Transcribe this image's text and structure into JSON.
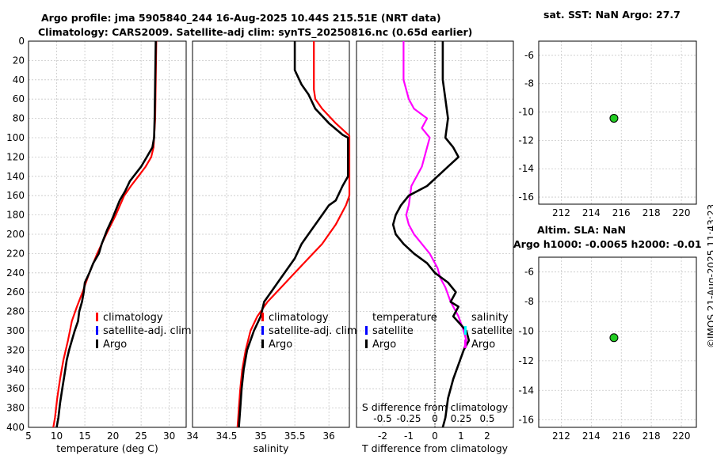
{
  "header": {
    "title_line1": "Argo profile: jma 5905840_244 16-Aug-2025 10.44S 215.51E (NRT data)",
    "title_line2": "Climatology: CARS2009. Satellite-adj clim: synTS_20250816.nc (0.65d earlier)",
    "sst_title": "sat. SST: NaN Argo: 27.7",
    "sla_title1": "Altim. SLA: NaN",
    "sla_title2": "Argo h1000: -0.0065 h2000: -0.01",
    "timestamp": "©IMOS 21-Aug-2025 11:43:23"
  },
  "colors": {
    "climatology": "#ff0000",
    "satellite": "#0000ff",
    "argo": "#000000",
    "diff_T": "#ff00ff",
    "diff_S": "#00ffff",
    "marker": "#22cc22"
  },
  "chart_data": [
    {
      "type": "line",
      "name": "temperature",
      "xlabel": "temperature (deg C)",
      "xlim": [
        5,
        33
      ],
      "xticks": [
        5,
        10,
        15,
        20,
        25,
        30
      ],
      "ylim": [
        400,
        0
      ],
      "yticks": [
        0,
        20,
        40,
        60,
        80,
        100,
        120,
        140,
        160,
        180,
        200,
        220,
        240,
        260,
        280,
        300,
        320,
        340,
        360,
        380,
        400
      ],
      "legend": [
        "climatology",
        "satellite-adj. clim",
        "Argo"
      ],
      "series": [
        {
          "name": "climatology",
          "color": "#ff0000",
          "x": [
            27.7,
            27.6,
            27.5,
            27.3,
            27.2,
            26.8,
            25.8,
            24.5,
            23.2,
            22.0,
            20.5,
            18.8,
            17.2,
            15.8,
            14.6,
            13.6,
            12.7,
            12.0,
            11.2,
            10.6,
            10.1,
            9.7,
            9.4
          ],
          "y": [
            0,
            40,
            80,
            100,
            110,
            120,
            130,
            140,
            150,
            160,
            180,
            200,
            220,
            240,
            260,
            275,
            290,
            310,
            330,
            350,
            370,
            390,
            400
          ]
        },
        {
          "name": "Argo",
          "color": "#000000",
          "x": [
            27.6,
            27.5,
            27.4,
            27.3,
            27.0,
            26.0,
            25.0,
            23.0,
            22.2,
            21.2,
            20.5,
            19.8,
            19.0,
            18.0,
            17.5,
            16.5,
            15.8,
            15.0,
            14.8,
            14.5,
            14.0,
            13.8,
            13.2,
            12.7,
            12.2,
            11.8,
            11.4,
            11.0,
            10.6,
            10.3,
            10.0
          ],
          "y": [
            0,
            40,
            80,
            100,
            110,
            120,
            130,
            145,
            155,
            165,
            175,
            185,
            195,
            210,
            220,
            230,
            240,
            250,
            260,
            270,
            280,
            290,
            300,
            310,
            320,
            330,
            345,
            360,
            375,
            390,
            400
          ]
        }
      ]
    },
    {
      "type": "line",
      "name": "salinity",
      "xlabel": "salinity",
      "xlim": [
        34,
        36.3
      ],
      "xticks": [
        34,
        34.5,
        35,
        35.5,
        36
      ],
      "xtick_labels": [
        "34",
        "34.5",
        "35",
        "35.5",
        "36"
      ],
      "ylim": [
        400,
        0
      ],
      "legend": [
        "climatology",
        "satellite-adj. clim",
        "Argo"
      ],
      "series": [
        {
          "name": "climatology",
          "color": "#ff0000",
          "x": [
            35.78,
            35.78,
            35.8,
            35.9,
            36.1,
            36.3,
            36.3,
            36.25,
            36.1,
            35.9,
            35.7,
            35.5,
            35.3,
            35.1,
            34.95,
            34.85,
            34.78,
            34.73,
            34.7,
            34.68,
            34.67,
            34.66
          ],
          "y": [
            0,
            50,
            60,
            70,
            85,
            98,
            160,
            170,
            190,
            210,
            225,
            240,
            255,
            270,
            285,
            300,
            320,
            340,
            360,
            380,
            390,
            400
          ]
        },
        {
          "name": "Argo",
          "color": "#000000",
          "x": [
            35.5,
            35.5,
            35.6,
            35.7,
            35.8,
            36.0,
            36.2,
            36.28,
            36.28,
            36.2,
            36.1,
            36.0,
            35.9,
            35.8,
            35.7,
            35.6,
            35.5,
            35.3,
            35.15,
            35.05,
            35.0,
            34.9,
            34.8,
            34.75,
            34.72,
            34.7,
            34.68
          ],
          "y": [
            0,
            30,
            45,
            55,
            70,
            85,
            97,
            100,
            140,
            150,
            165,
            170,
            180,
            190,
            200,
            210,
            225,
            245,
            260,
            270,
            285,
            300,
            320,
            340,
            360,
            380,
            400
          ]
        }
      ]
    },
    {
      "type": "line",
      "name": "differences",
      "xlabel": "T difference from climatology",
      "top_label": "S difference from climatology",
      "xlim": [
        -3,
        3
      ],
      "xticks": [
        -2,
        -1,
        0,
        1,
        2
      ],
      "top_ticks": [
        "-0.5",
        "-0.25",
        "0",
        "0.25",
        "0.5"
      ],
      "ylim": [
        400,
        0
      ],
      "legend_temperature": [
        "temperature",
        "satellite",
        "Argo"
      ],
      "legend_salinity": [
        "salinity",
        "satellite",
        "Argo"
      ],
      "series": [
        {
          "name": "Argo T difference",
          "color": "#000000",
          "x": [
            0.3,
            0.3,
            0.4,
            0.5,
            0.4,
            0.7,
            0.9,
            0.5,
            0.1,
            -0.3,
            -1.0,
            -1.3,
            -1.5,
            -1.6,
            -1.5,
            -1.2,
            -0.8,
            -0.3,
            0.0,
            0.5,
            0.8,
            0.6,
            0.9,
            0.7,
            1.2,
            1.3,
            1.1,
            0.9,
            0.7,
            0.5,
            0.4,
            0.3
          ],
          "y": [
            0,
            40,
            60,
            80,
            100,
            110,
            120,
            130,
            140,
            150,
            160,
            170,
            180,
            190,
            200,
            210,
            220,
            230,
            240,
            250,
            260,
            270,
            275,
            285,
            300,
            310,
            320,
            335,
            350,
            370,
            390,
            400
          ]
        },
        {
          "name": "Argo S difference",
          "color": "#ff00ff",
          "x": [
            -1.2,
            -1.2,
            -1.0,
            -0.8,
            -0.3,
            -0.5,
            -0.2,
            -0.3,
            -0.5,
            -0.9,
            -1.0,
            -1.1,
            -1.0,
            -0.8,
            -0.5,
            -0.2,
            0.1,
            0.2,
            0.4,
            0.6,
            0.9,
            1.1,
            1.2,
            1.1
          ],
          "y": [
            0,
            40,
            60,
            70,
            80,
            90,
            100,
            110,
            130,
            150,
            170,
            180,
            190,
            200,
            210,
            220,
            235,
            245,
            255,
            270,
            285,
            300,
            310,
            320
          ]
        }
      ]
    },
    {
      "type": "scatter",
      "name": "sst-map",
      "xlim": [
        210.5,
        221
      ],
      "ylim": [
        -16.5,
        -5
      ],
      "xticks": [
        212,
        214,
        216,
        218,
        220
      ],
      "yticks": [
        -6,
        -8,
        -10,
        -12,
        -14,
        -16
      ],
      "points": [
        {
          "x": 215.51,
          "y": -10.44
        }
      ]
    },
    {
      "type": "scatter",
      "name": "sla-map",
      "xlim": [
        210.5,
        221
      ],
      "ylim": [
        -16.5,
        -5
      ],
      "xticks": [
        212,
        214,
        216,
        218,
        220
      ],
      "yticks": [
        -6,
        -8,
        -10,
        -12,
        -14,
        -16
      ],
      "points": [
        {
          "x": 215.51,
          "y": -10.44
        }
      ]
    }
  ]
}
